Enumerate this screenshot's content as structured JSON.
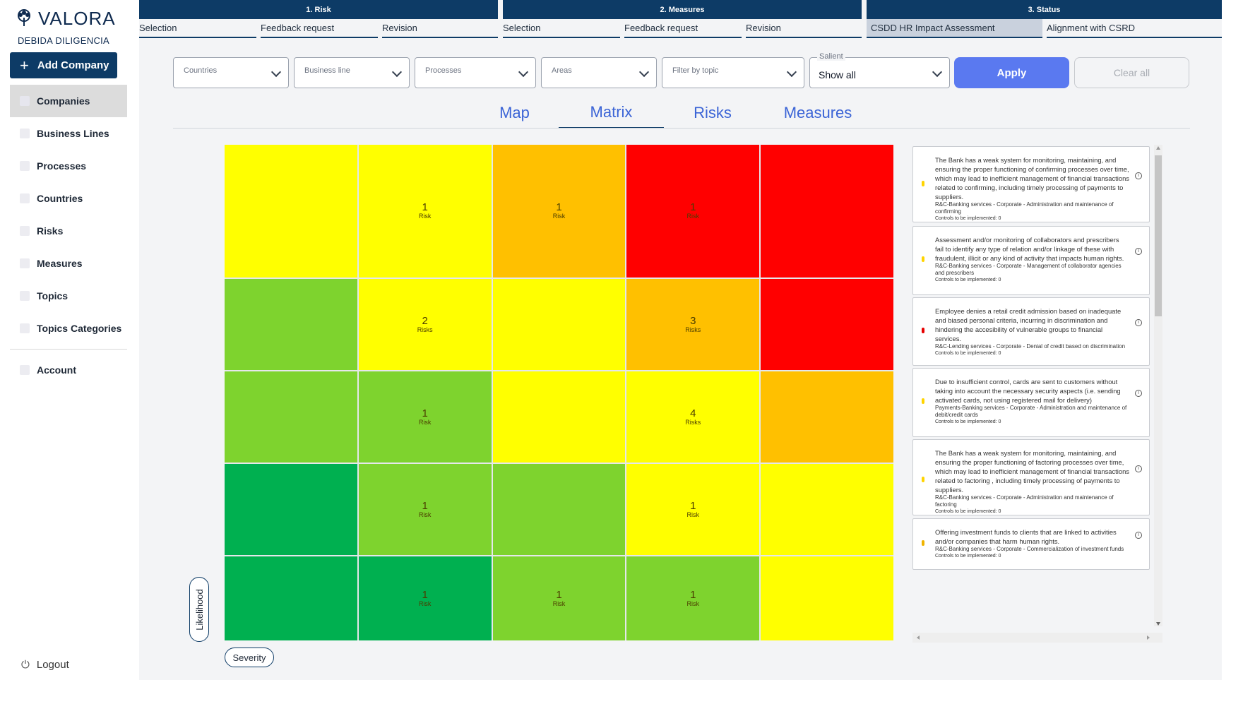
{
  "app": {
    "logo_text": "VALORA",
    "logo_subtitle": "DEBIDA DILIGENCIA",
    "add_company_label": "Add Company",
    "logout_label": "Logout"
  },
  "sidebar": {
    "items": [
      {
        "label": "Companies",
        "active": true
      },
      {
        "label": "Business Lines"
      },
      {
        "label": "Processes"
      },
      {
        "label": "Countries"
      },
      {
        "label": "Risks"
      },
      {
        "label": "Measures"
      },
      {
        "label": "Topics"
      },
      {
        "label": "Topics Categories"
      }
    ],
    "account_label": "Account"
  },
  "phases": [
    {
      "title": "1. Risk",
      "tabs": [
        "Selection",
        "Feedback request",
        "Revision"
      ]
    },
    {
      "title": "2. Measures",
      "tabs": [
        "Selection",
        "Feedback request",
        "Revision"
      ]
    },
    {
      "title": "3. Status",
      "tabs": [
        "CSDD HR Impact Assessment",
        "Alignment with CSRD"
      ]
    }
  ],
  "filters": {
    "countries": "Countries",
    "business_line": "Business line",
    "processes": "Processes",
    "areas": "Areas",
    "topic": "Filter by topic",
    "salient_label": "Salient",
    "salient_value": "Show all",
    "apply": "Apply",
    "clear": "Clear all"
  },
  "view_tabs": {
    "map": "Map",
    "matrix": "Matrix",
    "risks": "Risks",
    "measures": "Measures"
  },
  "matrix": {
    "colors": {
      "yellow": "#ffff00",
      "amber": "#ffc000",
      "red": "#ff0000",
      "light_green": "#7ed32e",
      "dark_green": "#00b050"
    },
    "rows": [
      [
        {
          "color": "yellow"
        },
        {
          "color": "yellow",
          "count": "1",
          "label": "Risk"
        },
        {
          "color": "amber",
          "count": "1",
          "label": "Risk"
        },
        {
          "color": "red",
          "count": "1",
          "label": "Risk"
        },
        {
          "color": "red"
        }
      ],
      [
        {
          "color": "light_green"
        },
        {
          "color": "yellow",
          "count": "2",
          "label": "Risks"
        },
        {
          "color": "yellow"
        },
        {
          "color": "amber",
          "count": "3",
          "label": "Risks"
        },
        {
          "color": "red"
        }
      ],
      [
        {
          "color": "light_green"
        },
        {
          "color": "light_green",
          "count": "1",
          "label": "Risk"
        },
        {
          "color": "yellow"
        },
        {
          "color": "yellow",
          "count": "4",
          "label": "Risks"
        },
        {
          "color": "amber"
        }
      ],
      [
        {
          "color": "dark_green"
        },
        {
          "color": "light_green",
          "count": "1",
          "label": "Risk"
        },
        {
          "color": "light_green"
        },
        {
          "color": "yellow",
          "count": "1",
          "label": "Risk"
        },
        {
          "color": "yellow"
        }
      ],
      [
        {
          "color": "dark_green"
        },
        {
          "color": "dark_green",
          "count": "1",
          "label": "Risk"
        },
        {
          "color": "light_green",
          "count": "1",
          "label": "Risk"
        },
        {
          "color": "light_green",
          "count": "1",
          "label": "Risk"
        },
        {
          "color": "yellow"
        }
      ]
    ],
    "y_axis_label": "Likelihood",
    "x_axis_label": "Severity"
  },
  "risks": [
    {
      "dot": "#ffd400",
      "description": "The Bank has a weak system for monitoring, maintaining, and ensuring the proper functioning of confirming processes over time, which may lead to inefficient management of financial transactions related to confirming, including timely processing of payments to suppliers.",
      "path": "R&C-Banking services - Corporate - Administration and maintenance of confirming",
      "controls": "Controls to be implemented: 0"
    },
    {
      "dot": "#ffd400",
      "description": "Assessment and/or monitoring of collaborators and prescribers fail to identify any type of relation and/or linkage of these with fraudulent, illicit or any kind of activity that impacts human rights.",
      "path": "R&C-Banking services - Corporate - Management of collaborator agencies and prescribers",
      "controls": "Controls to be implemented: 0"
    },
    {
      "dot": "#e60000",
      "description": "Employee denies a retail credit admission based on inadequate and biased personal criteria, incurring in discrimination and hindering the accesibility of vulnerable groups to financial services.",
      "path": "R&C-Lending services - Corporate - Denial of credit based on discrimination",
      "controls": "Controls to be implemented: 0"
    },
    {
      "dot": "#ffd400",
      "description": "Due to insufficient control, cards are sent to customers without taking into account the necessary security aspects (i.e. sending activated cards, not using registered mail for delivery)",
      "path": "Payments-Banking services - Corporate - Administration and maintenance of debit/credit cards",
      "controls": "Controls to be implemented: 0"
    },
    {
      "dot": "#ffd400",
      "description": "The Bank has a weak system for monitoring, maintaining, and ensuring the proper functioning of factoring processes over time, which may lead to inefficient management of financial transactions related to factoring , including timely processing of payments to suppliers.",
      "path": "R&C-Banking services - Corporate - Administration and maintenance of factoring",
      "controls": "Controls to be implemented: 0"
    },
    {
      "dot": "#f0b400",
      "description": "Offering investment funds to clients that are linked to activities and/or companies that harm human rights.",
      "path": "R&C-Banking services - Corporate - Commercialization of investment funds",
      "controls": "Controls to be implemented: 0"
    }
  ]
}
